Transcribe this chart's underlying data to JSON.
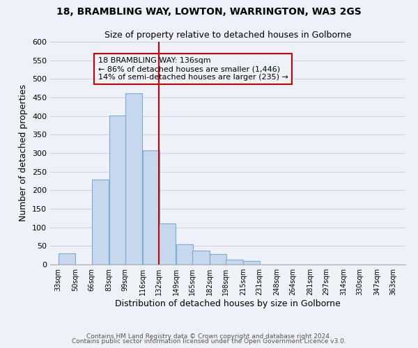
{
  "title": "18, BRAMBLING WAY, LOWTON, WARRINGTON, WA3 2GS",
  "subtitle": "Size of property relative to detached houses in Golborne",
  "xlabel": "Distribution of detached houses by size in Golborne",
  "ylabel": "Number of detached properties",
  "bar_left_edges": [
    33,
    50,
    66,
    83,
    99,
    116,
    132,
    149,
    165,
    182,
    198,
    215,
    231,
    248,
    264,
    281,
    297,
    314,
    330,
    347
  ],
  "bar_heights": [
    30,
    0,
    228,
    401,
    462,
    308,
    110,
    55,
    38,
    29,
    13,
    10,
    0,
    0,
    0,
    0,
    0,
    0,
    0,
    0
  ],
  "bin_width": 17,
  "bar_color": "#c5d8ee",
  "bar_edgecolor": "#7aafd4",
  "vline_x": 132,
  "vline_color": "#cc0000",
  "annotation_text": "18 BRAMBLING WAY: 136sqm\n← 86% of detached houses are smaller (1,446)\n14% of semi-detached houses are larger (235) →",
  "annotation_box_edgecolor": "#cc0000",
  "tick_labels": [
    "33sqm",
    "50sqm",
    "66sqm",
    "83sqm",
    "99sqm",
    "116sqm",
    "132sqm",
    "149sqm",
    "165sqm",
    "182sqm",
    "198sqm",
    "215sqm",
    "231sqm",
    "248sqm",
    "264sqm",
    "281sqm",
    "297sqm",
    "314sqm",
    "330sqm",
    "347sqm",
    "363sqm"
  ],
  "tick_positions": [
    33,
    50,
    66,
    83,
    99,
    116,
    132,
    149,
    165,
    182,
    198,
    215,
    231,
    248,
    264,
    281,
    297,
    314,
    330,
    347,
    363
  ],
  "ylim": [
    0,
    600
  ],
  "xlim": [
    25,
    375
  ],
  "yticks": [
    0,
    50,
    100,
    150,
    200,
    250,
    300,
    350,
    400,
    450,
    500,
    550,
    600
  ],
  "footer_line1": "Contains HM Land Registry data © Crown copyright and database right 2024.",
  "footer_line2": "Contains public sector information licensed under the Open Government Licence v3.0.",
  "grid_color": "#cdd5e5",
  "background_color": "#eef2f8"
}
